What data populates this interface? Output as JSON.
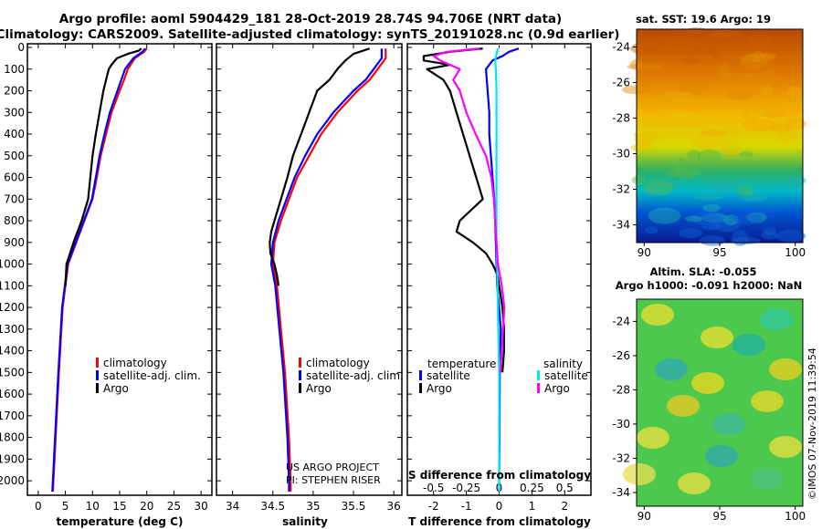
{
  "titles": {
    "line1": "Argo profile: aoml 5904429_181 28-Oct-2019 28.74S 94.706E (NRT data)",
    "line2": "Climatology: CARS2009. Satellite-adjusted climatology: synTS_20191028.nc (0.9d earlier)"
  },
  "colors": {
    "climatology": "#ff0000",
    "satellite": "#0000ff",
    "argo": "#000000",
    "s_satellite": "#00e5ee",
    "s_argo": "#ff00ff"
  },
  "chart_data": [
    {
      "type": "line",
      "id": "temperature",
      "xlabel": "temperature (deg C)",
      "xlim": [
        -2,
        32
      ],
      "ylim": [
        2050,
        0
      ],
      "xticks": [
        0,
        5,
        10,
        15,
        20,
        25,
        30
      ],
      "yticks": [
        0,
        100,
        200,
        300,
        400,
        500,
        600,
        700,
        800,
        900,
        1000,
        1100,
        1200,
        1300,
        1400,
        1500,
        1600,
        1700,
        1800,
        1900,
        2000
      ],
      "legend": [
        "climatology",
        "satellite-adj. clim.",
        "Argo"
      ],
      "series": [
        {
          "name": "climatology",
          "depth": [
            5,
            20,
            50,
            100,
            150,
            200,
            300,
            400,
            500,
            600,
            700,
            800,
            900,
            1000,
            1200,
            1500,
            1800,
            2000,
            2050
          ],
          "values": [
            20,
            19.5,
            17.8,
            16.5,
            15.8,
            15,
            13.5,
            12.5,
            11.5,
            10.8,
            10,
            8.5,
            7,
            5.5,
            4.5,
            3.8,
            3.2,
            2.8,
            2.7
          ]
        },
        {
          "name": "satellite-adj. clim.",
          "depth": [
            5,
            20,
            50,
            100,
            150,
            200,
            300,
            400,
            500,
            600,
            700,
            800,
            900,
            1000,
            1200,
            1500,
            1800,
            2000,
            2050
          ],
          "values": [
            19.7,
            19.2,
            17.5,
            16,
            15.3,
            14.6,
            13.2,
            12.2,
            11.3,
            10.6,
            9.9,
            8.4,
            6.9,
            5.4,
            4.4,
            3.7,
            3.1,
            2.7,
            2.6
          ]
        },
        {
          "name": "Argo",
          "depth": [
            5,
            15,
            30,
            50,
            80,
            100,
            150,
            200,
            300,
            400,
            500,
            600,
            700,
            800,
            900,
            1000,
            1100
          ],
          "values": [
            19,
            18.5,
            16.5,
            14.5,
            13.5,
            13,
            12.5,
            12,
            11.3,
            10.6,
            10,
            9.6,
            9.2,
            8,
            6.5,
            5.2,
            5
          ]
        }
      ]
    },
    {
      "type": "line",
      "id": "salinity",
      "xlabel": "salinity",
      "xlim": [
        33.8,
        36.1
      ],
      "ylim": [
        2050,
        0
      ],
      "xticks": [
        34,
        34.5,
        35,
        35.5,
        36
      ],
      "legend": [
        "climatology",
        "satellite-adj. clim.",
        "Argo"
      ],
      "series": [
        {
          "name": "climatology",
          "depth": [
            5,
            50,
            100,
            150,
            200,
            300,
            400,
            500,
            600,
            700,
            800,
            900,
            1000,
            1100,
            1300,
            1500,
            1800,
            2000,
            2050
          ],
          "values": [
            35.9,
            35.9,
            35.8,
            35.7,
            35.55,
            35.3,
            35.1,
            34.95,
            34.8,
            34.7,
            34.6,
            34.52,
            34.5,
            34.55,
            34.6,
            34.65,
            34.7,
            34.72,
            34.72
          ]
        },
        {
          "name": "satellite-adj. clim.",
          "depth": [
            5,
            50,
            100,
            150,
            200,
            300,
            400,
            500,
            600,
            700,
            800,
            900,
            1000,
            1100,
            1300,
            1500,
            1800,
            2000,
            2050
          ],
          "values": [
            35.85,
            35.85,
            35.75,
            35.65,
            35.5,
            35.25,
            35.05,
            34.9,
            34.77,
            34.67,
            34.57,
            34.5,
            34.48,
            34.53,
            34.58,
            34.63,
            34.68,
            34.7,
            34.7
          ]
        },
        {
          "name": "Argo",
          "depth": [
            5,
            30,
            60,
            100,
            150,
            200,
            300,
            400,
            500,
            600,
            700,
            800,
            850,
            900,
            950,
            1000,
            1050,
            1100
          ],
          "values": [
            35.7,
            35.5,
            35.4,
            35.3,
            35.2,
            35.05,
            34.95,
            34.85,
            34.75,
            34.68,
            34.6,
            34.52,
            34.48,
            34.46,
            34.47,
            34.52,
            34.55,
            34.57
          ]
        }
      ]
    },
    {
      "type": "line",
      "id": "difference",
      "xlabel": "T difference from climatology",
      "xlabel2": "S difference from climatology",
      "xlim": [
        -2.8,
        2.8
      ],
      "ylim": [
        2050,
        0
      ],
      "xticks": [
        -2,
        -1,
        0,
        1,
        2
      ],
      "xticks2": [
        -0.5,
        -0.25,
        0,
        0.25,
        0.5
      ],
      "legend_temperature_title": "temperature",
      "legend_salinity_title": "salinity",
      "legend_temperature": [
        "satellite",
        "Argo"
      ],
      "legend_salinity": [
        "satellite",
        "Argo"
      ],
      "series": [
        {
          "name": "T satellite",
          "depth": [
            5,
            20,
            40,
            60,
            100,
            200,
            300,
            400,
            500,
            600,
            700,
            800,
            900,
            1000,
            1100,
            1200,
            1300,
            1500,
            1800,
            2000,
            2050
          ],
          "values": [
            0.6,
            0.3,
            0.1,
            -0.2,
            -0.4,
            -0.35,
            -0.3,
            -0.3,
            -0.25,
            -0.2,
            -0.15,
            -0.12,
            -0.1,
            -0.08,
            -0.06,
            0,
            0.05,
            0.02,
            0.01,
            0,
            0
          ]
        },
        {
          "name": "T Argo",
          "depth": [
            5,
            20,
            40,
            60,
            80,
            100,
            150,
            200,
            300,
            400,
            500,
            600,
            700,
            800,
            850,
            900,
            950,
            1000,
            1050,
            1100,
            1200,
            1300,
            1400,
            1500
          ],
          "values": [
            -0.5,
            -1.5,
            -2.3,
            -2.3,
            -1.5,
            -2.2,
            -1.7,
            -1.5,
            -1.3,
            -1.1,
            -0.9,
            -0.7,
            -0.5,
            -1.2,
            -1.3,
            -0.8,
            -0.4,
            -0.2,
            -0.05,
            0,
            0.1,
            0.15,
            0.15,
            0.1
          ]
        },
        {
          "name": "S satellite",
          "depth": [
            5,
            30,
            60,
            100,
            200,
            300,
            400,
            500,
            600,
            700,
            800,
            900,
            1000,
            1200,
            1500,
            1800,
            2000,
            2050
          ],
          "values": [
            -0.01,
            -0.02,
            -0.03,
            -0.025,
            -0.02,
            -0.02,
            -0.02,
            -0.02,
            -0.02,
            -0.02,
            -0.02,
            -0.02,
            -0.015,
            -0.01,
            0,
            0,
            0,
            0
          ]
        },
        {
          "name": "S Argo",
          "depth": [
            5,
            20,
            40,
            60,
            100,
            150,
            200,
            300,
            400,
            500,
            600,
            700,
            800,
            900,
            1000,
            1100,
            1200,
            1300,
            1400,
            1500
          ],
          "values": [
            -0.15,
            -0.4,
            -0.5,
            -0.45,
            -0.3,
            -0.35,
            -0.3,
            -0.25,
            -0.18,
            -0.1,
            -0.06,
            -0.04,
            -0.03,
            -0.02,
            -0.01,
            0.02,
            0.04,
            0.03,
            0.02,
            0.01
          ]
        }
      ]
    },
    {
      "type": "heatmap",
      "id": "sst_map",
      "title": "sat. SST: 19.6 Argo: 19",
      "xticks": [
        90,
        95,
        100
      ],
      "yticks": [
        -24,
        -26,
        -28,
        -30,
        -32,
        -34
      ]
    },
    {
      "type": "heatmap",
      "id": "sla_map",
      "title1": "Altim. SLA: -0.055",
      "title2": "Argo h1000: -0.091 h2000: NaN",
      "xticks": [
        90,
        95,
        100
      ],
      "yticks": [
        -24,
        -26,
        -28,
        -30,
        -32,
        -34
      ]
    }
  ],
  "credits": {
    "project": "US ARGO PROJECT",
    "pi": "PI: STEPHEN RISER",
    "imos": "©IMOS 07-Nov-2019 11:39:54"
  }
}
